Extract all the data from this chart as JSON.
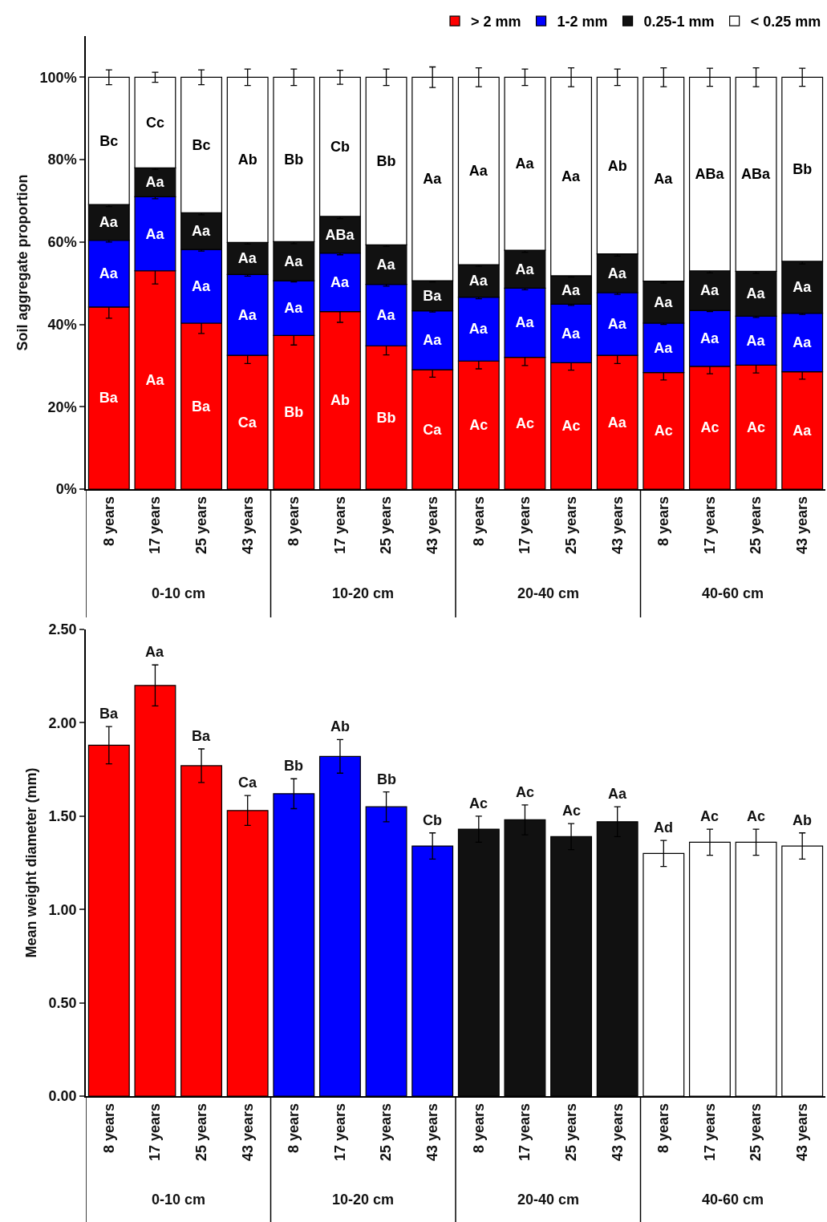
{
  "chart_data": [
    {
      "type": "bar",
      "stacked": true,
      "ylabel": "Soil aggregate proportion",
      "categories": [
        "8 years",
        "17 years",
        "25 years",
        "43 years",
        "8 years",
        "17 years",
        "25 years",
        "43 years",
        "8 years",
        "17 years",
        "25 years",
        "43 years",
        "8 years",
        "17 years",
        "25 years",
        "43 years"
      ],
      "series": [
        {
          "name": "> 2 mm",
          "color": "#ff0000",
          "values": [
            44.2,
            53,
            40.3,
            32.5,
            37.3,
            43.1,
            34.8,
            29,
            31.1,
            32,
            30.7,
            32.5,
            28.3,
            29.8,
            30.1,
            28.5
          ],
          "errors": [
            2.7,
            3.2,
            2.5,
            2,
            2.3,
            2.6,
            2.2,
            1.8,
            1.9,
            2,
            1.8,
            2,
            1.8,
            1.8,
            1.9,
            1.8
          ],
          "value_labels": [
            "Ba",
            "Aa",
            "Ba",
            "Ca",
            "Bb",
            "Ab",
            "Bb",
            "Ca",
            "Ac",
            "Ac",
            "Ac",
            "Aa",
            "Ac",
            "Ac",
            "Ac",
            "Aa"
          ]
        },
        {
          "name": "1-2 mm",
          "color": "#0000ff",
          "values": [
            16.2,
            18,
            17.9,
            19.6,
            13.3,
            14.2,
            14.9,
            14.3,
            15.5,
            16.8,
            14.2,
            15.2,
            12,
            13.6,
            11.9,
            14.2
          ],
          "errors": [
            0.4,
            0.5,
            0.4,
            0.4,
            0.3,
            0.4,
            0.4,
            0.3,
            0.4,
            0.4,
            0.3,
            0.4,
            0.3,
            0.3,
            0.3,
            0.3
          ],
          "value_labels": [
            "Aa",
            "Aa",
            "Aa",
            "Aa",
            "Aa",
            "Aa",
            "Aa",
            "Aa",
            "Aa",
            "Aa",
            "Aa",
            "Aa",
            "Aa",
            "Aa",
            "Aa",
            "Aa"
          ]
        },
        {
          "name": "0.25-1 mm",
          "color": "#111111",
          "values": [
            8.7,
            7,
            8.9,
            7.8,
            9.5,
            8.9,
            9.6,
            7.3,
            7.9,
            9.2,
            6.9,
            9.4,
            10.2,
            9.6,
            10.9,
            12.6
          ],
          "errors": [
            0.5,
            0.4,
            0.5,
            0.4,
            0.5,
            0.5,
            0.4,
            0.3,
            0.4,
            0.5,
            0.3,
            0.5,
            0.5,
            0.5,
            0.5,
            0.6
          ],
          "value_labels": [
            "Aa",
            "Aa",
            "Aa",
            "Aa",
            "Aa",
            "ABa",
            "Aa",
            "Ba",
            "Aa",
            "Aa",
            "Aa",
            "Aa",
            "Aa",
            "Aa",
            "Aa",
            "Aa"
          ]
        },
        {
          "name": "< 0.25 mm",
          "color": "#ffffff",
          "values": [
            30.9,
            22,
            32.9,
            40.1,
            39.9,
            33.8,
            40.7,
            49.4,
            45.5,
            42,
            48.2,
            42.9,
            49.5,
            47,
            47.1,
            44.7
          ],
          "errors": [
            1.8,
            1.2,
            1.8,
            2,
            2,
            1.7,
            2,
            2.5,
            2.3,
            2,
            2.3,
            2,
            2.3,
            2.2,
            2.3,
            2.2
          ],
          "value_labels": [
            "Bc",
            "Cc",
            "Bc",
            "Ab",
            "Bb",
            "Cb",
            "Bb",
            "Aa",
            "Aa",
            "Aa",
            "Aa",
            "Ab",
            "Aa",
            "ABa",
            "ABa",
            "Bb"
          ]
        }
      ],
      "ylim": [
        0,
        110
      ],
      "yticks": [
        {
          "value": 0,
          "label": "0%"
        },
        {
          "value": 20,
          "label": "20%"
        },
        {
          "value": 40,
          "label": "40%"
        },
        {
          "value": 60,
          "label": "60%"
        },
        {
          "value": 80,
          "label": "80%"
        },
        {
          "value": 100,
          "label": "100%"
        }
      ],
      "legend": "top right",
      "annotations": [
        "0-10 cm",
        "10-20 cm",
        "20-40 cm",
        "40-60 cm"
      ]
    },
    {
      "type": "bar",
      "ylabel": "Mean weight diameter (mm)",
      "categories": [
        "8 years",
        "17 years",
        "25 years",
        "43 years",
        "8 years",
        "17 years",
        "25 years",
        "43 years",
        "8 years",
        "17 years",
        "25 years",
        "43 years",
        "8 years",
        "17 years",
        "25 years",
        "43 years"
      ],
      "values": [
        1.88,
        2.2,
        1.77,
        1.53,
        1.62,
        1.82,
        1.55,
        1.34,
        1.43,
        1.48,
        1.39,
        1.47,
        1.3,
        1.36,
        1.36,
        1.34
      ],
      "errors": [
        0.1,
        0.11,
        0.09,
        0.08,
        0.08,
        0.09,
        0.08,
        0.07,
        0.07,
        0.08,
        0.07,
        0.08,
        0.07,
        0.07,
        0.07,
        0.07
      ],
      "colors": [
        "#ff0000",
        "#ff0000",
        "#ff0000",
        "#ff0000",
        "#0000ff",
        "#0000ff",
        "#0000ff",
        "#0000ff",
        "#111111",
        "#111111",
        "#111111",
        "#111111",
        "#ffffff",
        "#ffffff",
        "#ffffff",
        "#ffffff"
      ],
      "value_labels": [
        "Ba",
        "Aa",
        "Ba",
        "Ca",
        "Bb",
        "Ab",
        "Bb",
        "Cb",
        "Ac",
        "Ac",
        "Ac",
        "Aa",
        "Ad",
        "Ac",
        "Ac",
        "Ab"
      ],
      "ylim": [
        0,
        2.5
      ],
      "yticks": [
        {
          "value": 0,
          "label": "0.00"
        },
        {
          "value": 0.5,
          "label": "0.50"
        },
        {
          "value": 1,
          "label": "1.00"
        },
        {
          "value": 1.5,
          "label": "1.50"
        },
        {
          "value": 2,
          "label": "2.00"
        },
        {
          "value": 2.5,
          "label": "2.50"
        }
      ],
      "legend": false,
      "annotations": [
        "0-10 cm",
        "10-20 cm",
        "20-40 cm",
        "40-60 cm"
      ]
    }
  ]
}
